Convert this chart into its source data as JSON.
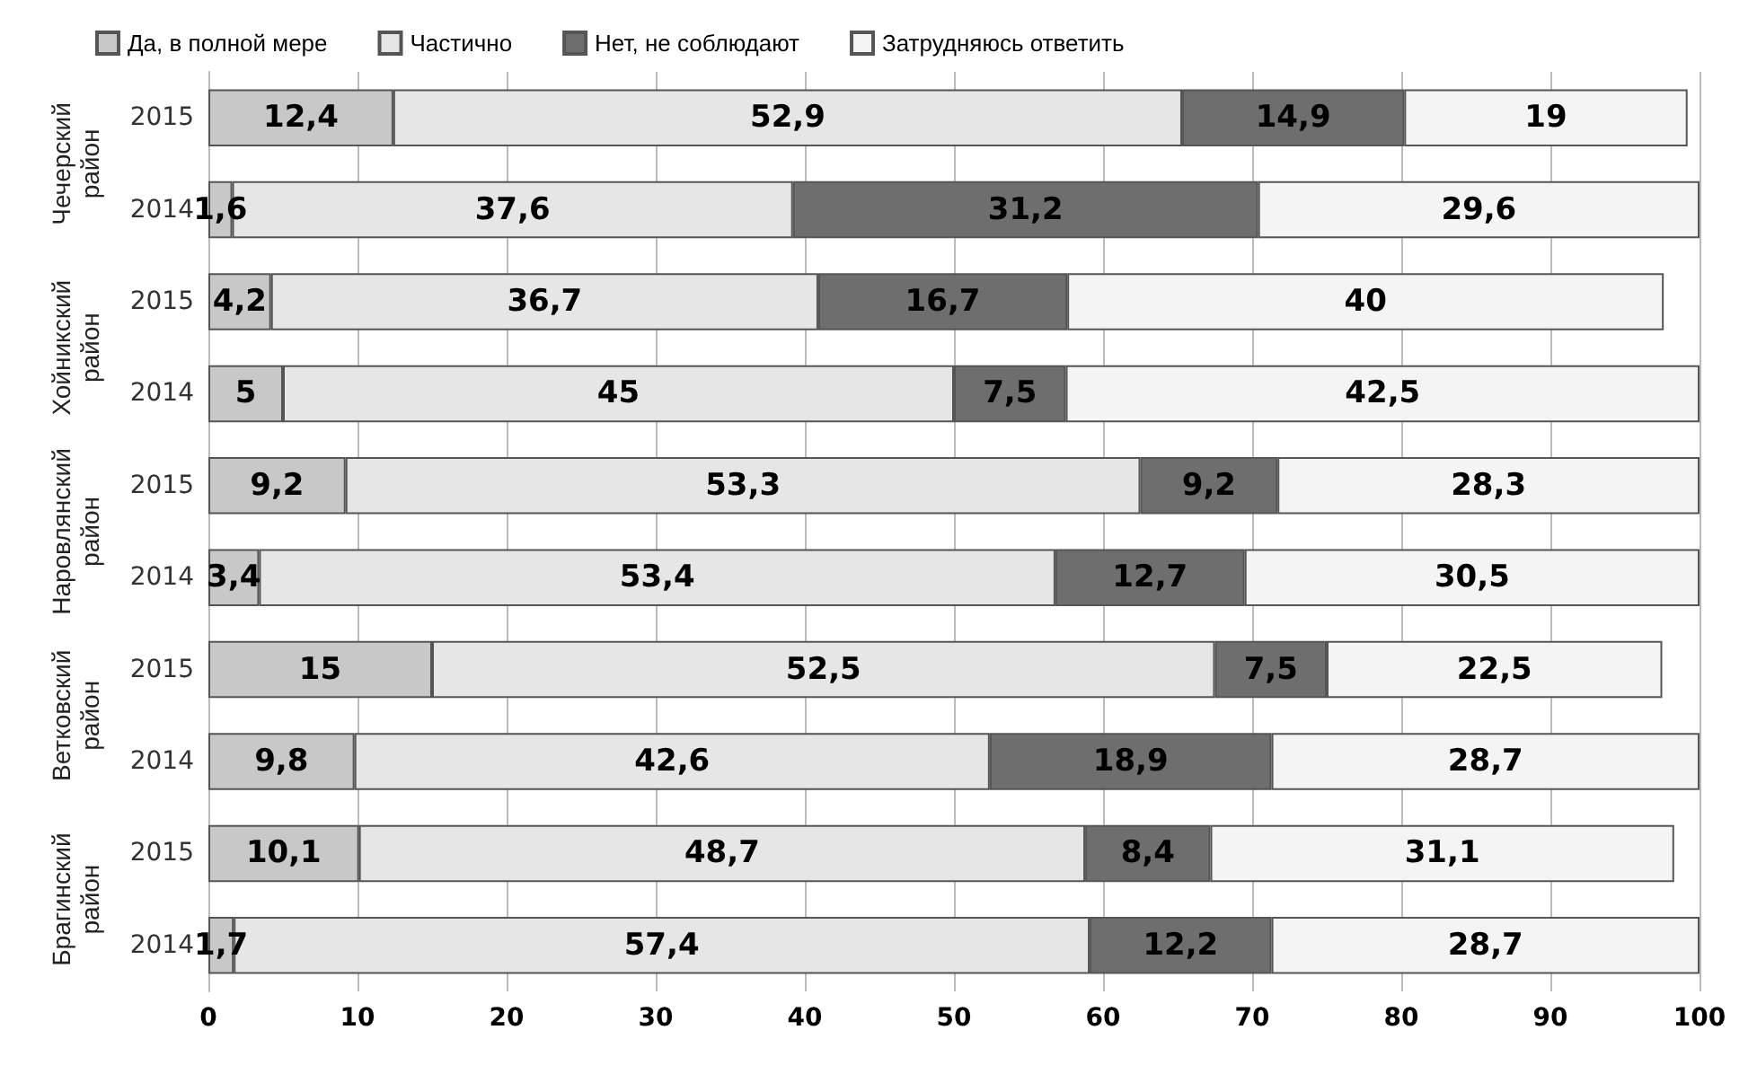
{
  "chart_data": {
    "type": "bar",
    "orientation": "horizontal",
    "stacked": true,
    "categories": [
      "2015",
      "2014",
      "2015",
      "2014",
      "2015",
      "2014",
      "2015",
      "2014",
      "2015",
      "2014"
    ],
    "annotations": [
      "Чечерский район",
      "Хойникский район",
      "Наровлянский район",
      "Ветковский район",
      "Брагинский район"
    ],
    "series": [
      {
        "name": "Да, в полной мере",
        "color": "#c8c8c8",
        "values": [
          12.4,
          1.6,
          4.2,
          5,
          9.2,
          3.4,
          15,
          9.8,
          10.1,
          1.7
        ],
        "value_labels": [
          "12,4",
          "1,6",
          "4,2",
          "5",
          "9,2",
          "3,4",
          "15",
          "9,8",
          "10,1",
          "1,7"
        ]
      },
      {
        "name": "Частично",
        "color": "#e6e6e6",
        "values": [
          52.9,
          37.6,
          36.7,
          45,
          53.3,
          53.4,
          52.5,
          42.6,
          48.7,
          57.4
        ],
        "value_labels": [
          "52,9",
          "37,6",
          "36,7",
          "45",
          "53,3",
          "53,4",
          "52,5",
          "42,6",
          "48,7",
          "57,4"
        ]
      },
      {
        "name": "Нет, не соблюдают",
        "color": "#6e6e6e",
        "values": [
          14.9,
          31.2,
          16.7,
          7.5,
          9.2,
          12.7,
          7.5,
          18.9,
          8.4,
          12.2
        ],
        "value_labels": [
          "14,9",
          "31,2",
          "16,7",
          "7,5",
          "9,2",
          "12,7",
          "7,5",
          "18,9",
          "8,4",
          "12,2"
        ]
      },
      {
        "name": "Затрудняюсь ответить",
        "color": "#f4f4f4",
        "values": [
          19,
          29.6,
          40,
          42.5,
          28.3,
          30.5,
          22.5,
          28.7,
          31.1,
          28.7
        ],
        "value_labels": [
          "19",
          "29,6",
          "40",
          "42,5",
          "28,3",
          "30,5",
          "22,5",
          "28,7",
          "31,1",
          "28,7"
        ]
      }
    ],
    "xlim": [
      0,
      100
    ],
    "xticks": [
      0,
      10,
      20,
      30,
      40,
      50,
      60,
      70,
      80,
      90,
      100
    ],
    "grid": "x",
    "legend": "top left"
  }
}
